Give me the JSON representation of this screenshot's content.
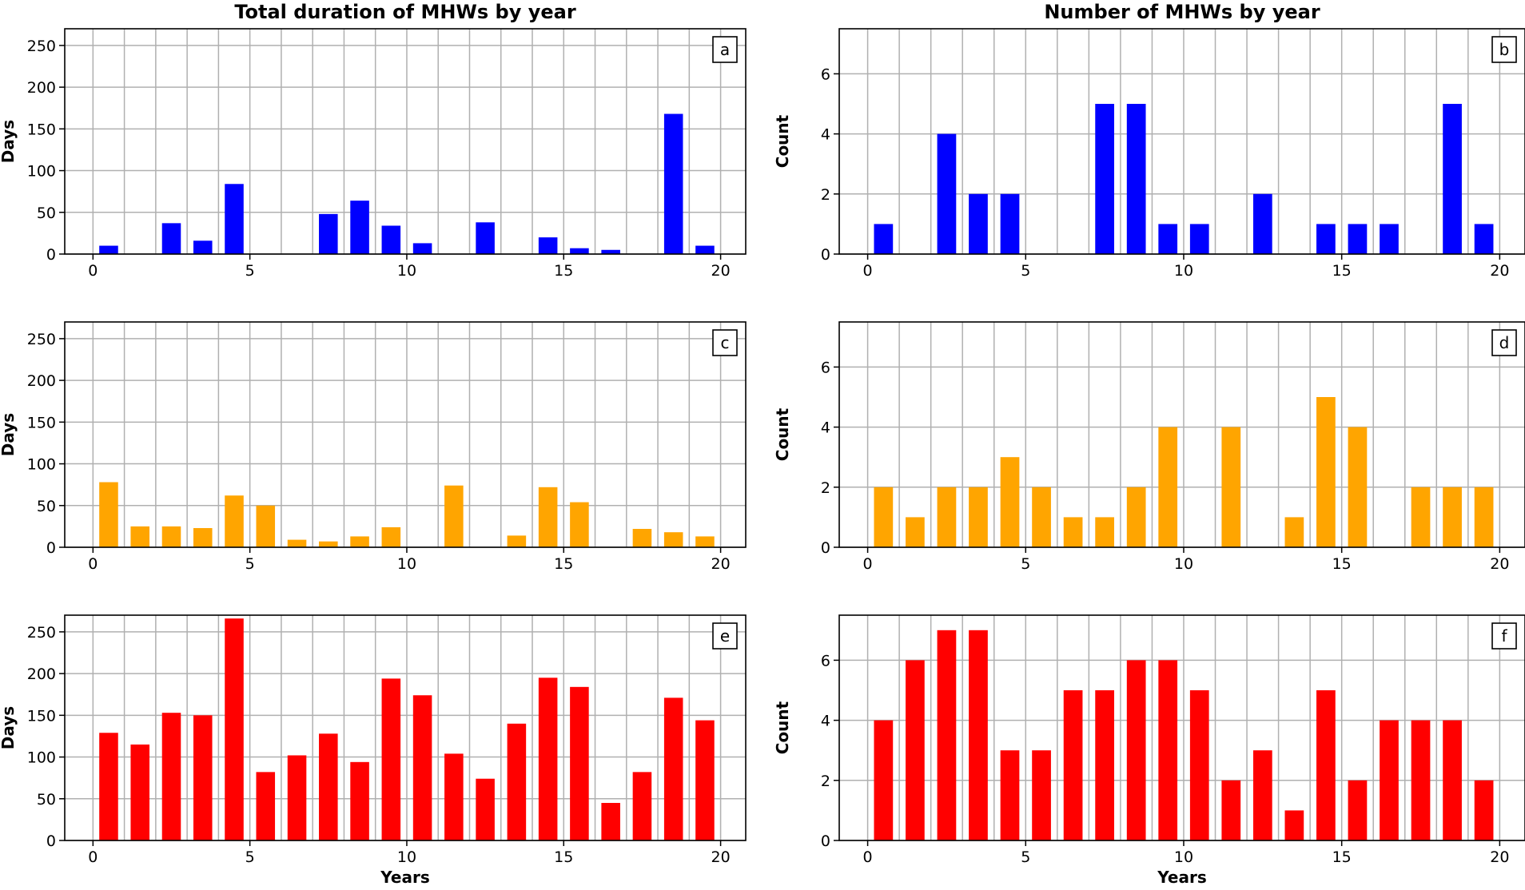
{
  "figure": {
    "column_titles": [
      "Total duration of MHWs by year",
      "Number of MHWs by year"
    ]
  },
  "chart_data": [
    {
      "type": "bar",
      "panel": "a",
      "color": "#0000ff",
      "title": "Total duration of MHWs by year",
      "xlabel": "",
      "ylabel": "Days",
      "xlim": [
        -0.9,
        20.8
      ],
      "ylim": [
        0,
        270
      ],
      "xticks": [
        0,
        5,
        10,
        15,
        20
      ],
      "yticks": [
        0,
        50,
        100,
        150,
        200,
        250
      ],
      "x": [
        0.5,
        1.5,
        2.5,
        3.5,
        4.5,
        5.5,
        6.5,
        7.5,
        8.5,
        9.5,
        10.5,
        11.5,
        12.5,
        13.5,
        14.5,
        15.5,
        16.5,
        17.5,
        18.5,
        19.5
      ],
      "values": [
        10,
        0,
        37,
        16,
        84,
        0,
        0,
        48,
        64,
        34,
        13,
        0,
        38,
        0,
        20,
        7,
        5,
        0,
        168,
        10
      ]
    },
    {
      "type": "bar",
      "panel": "b",
      "color": "#0000ff",
      "title": "Number of MHWs by year",
      "xlabel": "",
      "ylabel": "Count",
      "xlim": [
        -0.9,
        20.8
      ],
      "ylim": [
        0,
        7.5
      ],
      "xticks": [
        0,
        5,
        10,
        15,
        20
      ],
      "yticks": [
        0,
        2,
        4,
        6
      ],
      "x": [
        0.5,
        1.5,
        2.5,
        3.5,
        4.5,
        5.5,
        6.5,
        7.5,
        8.5,
        9.5,
        10.5,
        11.5,
        12.5,
        13.5,
        14.5,
        15.5,
        16.5,
        17.5,
        18.5,
        19.5
      ],
      "values": [
        1,
        0,
        4,
        2,
        2,
        0,
        0,
        5,
        5,
        1,
        1,
        0,
        2,
        0,
        1,
        1,
        1,
        0,
        5,
        1
      ]
    },
    {
      "type": "bar",
      "panel": "c",
      "color": "#ffa500",
      "title": "",
      "xlabel": "",
      "ylabel": "Days",
      "xlim": [
        -0.9,
        20.8
      ],
      "ylim": [
        0,
        270
      ],
      "xticks": [
        0,
        5,
        10,
        15,
        20
      ],
      "yticks": [
        0,
        50,
        100,
        150,
        200,
        250
      ],
      "x": [
        0.5,
        1.5,
        2.5,
        3.5,
        4.5,
        5.5,
        6.5,
        7.5,
        8.5,
        9.5,
        10.5,
        11.5,
        12.5,
        13.5,
        14.5,
        15.5,
        16.5,
        17.5,
        18.5,
        19.5
      ],
      "values": [
        78,
        25,
        25,
        23,
        62,
        50,
        9,
        7,
        13,
        24,
        0,
        74,
        0,
        14,
        72,
        54,
        0,
        22,
        18,
        13
      ]
    },
    {
      "type": "bar",
      "panel": "d",
      "color": "#ffa500",
      "title": "",
      "xlabel": "",
      "ylabel": "Count",
      "xlim": [
        -0.9,
        20.8
      ],
      "ylim": [
        0,
        7.5
      ],
      "xticks": [
        0,
        5,
        10,
        15,
        20
      ],
      "yticks": [
        0,
        2,
        4,
        6
      ],
      "x": [
        0.5,
        1.5,
        2.5,
        3.5,
        4.5,
        5.5,
        6.5,
        7.5,
        8.5,
        9.5,
        10.5,
        11.5,
        12.5,
        13.5,
        14.5,
        15.5,
        16.5,
        17.5,
        18.5,
        19.5
      ],
      "values": [
        2,
        1,
        2,
        2,
        3,
        2,
        1,
        1,
        2,
        4,
        0,
        4,
        0,
        1,
        5,
        4,
        0,
        2,
        2,
        2
      ]
    },
    {
      "type": "bar",
      "panel": "e",
      "color": "#ff0000",
      "title": "",
      "xlabel": "Years",
      "ylabel": "Days",
      "xlim": [
        -0.9,
        20.8
      ],
      "ylim": [
        0,
        270
      ],
      "xticks": [
        0,
        5,
        10,
        15,
        20
      ],
      "yticks": [
        0,
        50,
        100,
        150,
        200,
        250
      ],
      "x": [
        0.5,
        1.5,
        2.5,
        3.5,
        4.5,
        5.5,
        6.5,
        7.5,
        8.5,
        9.5,
        10.5,
        11.5,
        12.5,
        13.5,
        14.5,
        15.5,
        16.5,
        17.5,
        18.5,
        19.5
      ],
      "values": [
        129,
        115,
        153,
        150,
        266,
        82,
        102,
        128,
        94,
        194,
        174,
        104,
        74,
        140,
        195,
        184,
        45,
        82,
        171,
        144
      ]
    },
    {
      "type": "bar",
      "panel": "f",
      "color": "#ff0000",
      "title": "",
      "xlabel": "Years",
      "ylabel": "Count",
      "xlim": [
        -0.9,
        20.8
      ],
      "ylim": [
        0,
        7.5
      ],
      "xticks": [
        0,
        5,
        10,
        15,
        20
      ],
      "yticks": [
        0,
        2,
        4,
        6
      ],
      "x": [
        0.5,
        1.5,
        2.5,
        3.5,
        4.5,
        5.5,
        6.5,
        7.5,
        8.5,
        9.5,
        10.5,
        11.5,
        12.5,
        13.5,
        14.5,
        15.5,
        16.5,
        17.5,
        18.5,
        19.5
      ],
      "values": [
        4,
        6,
        7,
        7,
        3,
        3,
        5,
        5,
        6,
        6,
        5,
        2,
        3,
        1,
        5,
        2,
        4,
        4,
        4,
        2
      ]
    }
  ]
}
